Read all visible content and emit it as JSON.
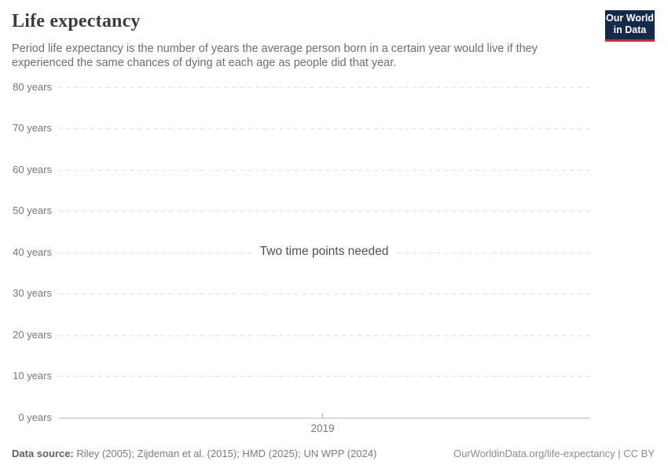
{
  "header": {
    "title": "Life expectancy",
    "subtitle": "Period life expectancy is the number of years the average person born in a certain year would live if they experienced the same chances of dying at each age as people did that year."
  },
  "logo": {
    "line1": "Our World",
    "line2": "in Data",
    "bg_color": "#122b4d",
    "accent_color": "#c5303c"
  },
  "chart_data": {
    "type": "line",
    "title": "Life expectancy",
    "message": "Two time points needed",
    "series": [],
    "categories": [
      2019
    ],
    "yticks": [
      "80 years",
      "70 years",
      "60 years",
      "50 years",
      "40 years",
      "30 years",
      "20 years",
      "10 years",
      "0 years"
    ],
    "xticks": [
      "2019"
    ],
    "ylim": [
      0,
      80
    ],
    "xlabel": "",
    "ylabel": "",
    "grid": "horizontal-dashed",
    "gridline_color": "#e2e2e4",
    "axis_color": "#b9b9bd"
  },
  "footer": {
    "source_label": "Data source:",
    "source_text": " Riley (2005); Zijdeman et al. (2015); HMD (2025); UN WPP (2024)",
    "rights": "OurWorldinData.org/life-expectancy | CC BY"
  }
}
